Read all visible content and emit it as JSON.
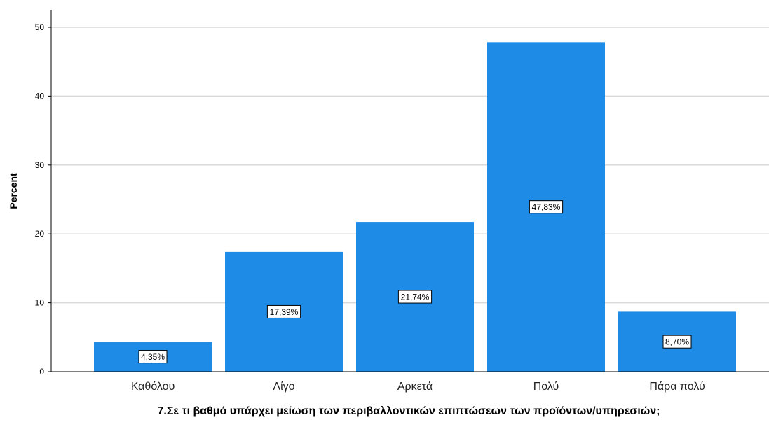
{
  "chart_data": {
    "type": "bar",
    "categories": [
      "Καθόλου",
      "Λίγο",
      "Αρκετά",
      "Πολύ",
      "Πάρα πολύ"
    ],
    "values": [
      4.35,
      17.39,
      21.74,
      47.83,
      8.7
    ],
    "data_labels": [
      "4,35%",
      "17,39%",
      "21,74%",
      "47,83%",
      "8,70%"
    ],
    "xlabel": "7.Σε τι βαθμό υπάρχει μείωση των περιβαλλοντικών επιπτώσεων των προϊόντων/υπηρεσιών;",
    "ylabel": "Percent",
    "ylim": [
      0,
      53
    ],
    "yticks": [
      0,
      10,
      20,
      30,
      40,
      50
    ],
    "grid": true,
    "bar_color": "#1E8BE6",
    "grid_color": "#D9D9D9"
  }
}
